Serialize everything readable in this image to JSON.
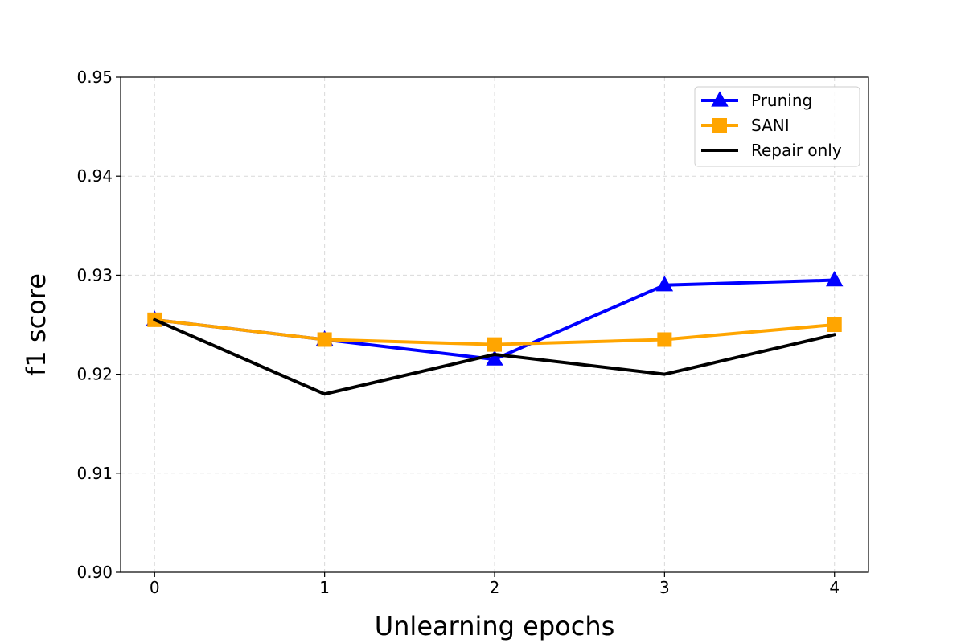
{
  "chart_data": {
    "type": "line",
    "title": "",
    "xlabel": "Unlearning epochs",
    "ylabel": "f1 score",
    "x": [
      0,
      1,
      2,
      3,
      4
    ],
    "x_tick_labels": [
      "0",
      "1",
      "2",
      "3",
      "4"
    ],
    "xlim": [
      -0.2,
      4.2
    ],
    "ylim": [
      0.9,
      0.95
    ],
    "y_ticks": [
      0.9,
      0.91,
      0.92,
      0.93,
      0.94,
      0.95
    ],
    "y_tick_labels": [
      "0.90",
      "0.91",
      "0.92",
      "0.93",
      "0.94",
      "0.95"
    ],
    "grid": true,
    "legend_position": "top-right",
    "series": [
      {
        "name": "Pruning",
        "color": "#0000ff",
        "marker": "triangle",
        "values": [
          0.9255,
          0.9235,
          0.9215,
          0.929,
          0.9295
        ]
      },
      {
        "name": "SANI",
        "color": "#ffa500",
        "marker": "square",
        "values": [
          0.9255,
          0.9235,
          0.923,
          0.9235,
          0.925
        ]
      },
      {
        "name": "Repair only",
        "color": "#000000",
        "marker": "none",
        "values": [
          0.9255,
          0.918,
          0.922,
          0.92,
          0.924
        ]
      }
    ]
  }
}
